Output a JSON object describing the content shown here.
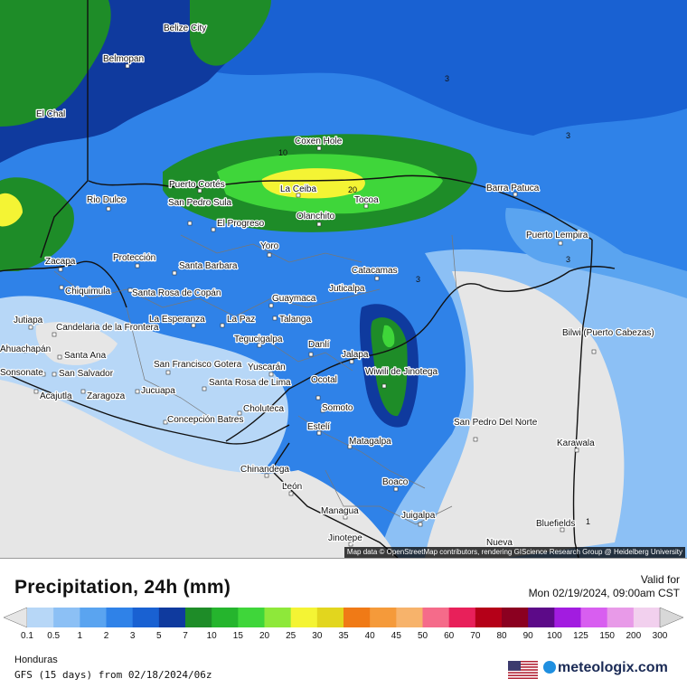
{
  "title": "Precipitation, 24h (mm)",
  "valid_label": "Valid for",
  "valid_time": "Mon 02/19/2024, 09:00am CST",
  "region": "Honduras",
  "model_run": "GFS (15 days) from  02/18/2024/06z",
  "brand": "meteologix.com",
  "attribution": "Map data © OpenStreetMap contributors, rendering GIScience Research Group @ Heidelberg University",
  "legend": {
    "ticks": [
      "0.1",
      "0.5",
      "1",
      "2",
      "3",
      "5",
      "7",
      "10",
      "15",
      "20",
      "25",
      "30",
      "35",
      "40",
      "45",
      "50",
      "60",
      "70",
      "80",
      "90",
      "100",
      "125",
      "150",
      "200",
      "300"
    ],
    "colors": [
      "#e6e6e6",
      "#b7d7f7",
      "#8cc0f5",
      "#5aa4f0",
      "#2f82e8",
      "#1961d2",
      "#0f3a9e",
      "#1e8c28",
      "#25b52d",
      "#3fd63a",
      "#8ee83a",
      "#f4f434",
      "#e2d61e",
      "#f07a16",
      "#f59a3a",
      "#f7b36b",
      "#f56b8a",
      "#e8205a",
      "#b50018",
      "#8b0020",
      "#5c0a88",
      "#a21ce0",
      "#d85ef0",
      "#e89ae8",
      "#f2d0ee",
      "#d8d8d8"
    ]
  },
  "cities": [
    {
      "name": "Belize City"
    },
    {
      "name": "Belmopan"
    },
    {
      "name": "El Chal"
    },
    {
      "name": "Coxen Hole"
    },
    {
      "name": "Puerto Cortés"
    },
    {
      "name": "La Ceiba"
    },
    {
      "name": "Tocoa"
    },
    {
      "name": "Barra Patuca"
    },
    {
      "name": "Rio Dulce"
    },
    {
      "name": "San Pedro Sula"
    },
    {
      "name": "El Progreso"
    },
    {
      "name": "Olanchito"
    },
    {
      "name": "Puerto Lempira"
    },
    {
      "name": "Yoro"
    },
    {
      "name": "Zacapa"
    },
    {
      "name": "Protección"
    },
    {
      "name": "Santa Barbara"
    },
    {
      "name": "Catacamas"
    },
    {
      "name": "Chiquimula"
    },
    {
      "name": "Santa Rosa de Copán"
    },
    {
      "name": "Juticalpa"
    },
    {
      "name": "Guaymaca"
    },
    {
      "name": "Jutiapa"
    },
    {
      "name": "Candelaria de la Frontera"
    },
    {
      "name": "La Esperanza"
    },
    {
      "name": "La Paz"
    },
    {
      "name": "Talanga"
    },
    {
      "name": "Bilwi (Puerto Cabezas)"
    },
    {
      "name": "Ahuachapán"
    },
    {
      "name": "Santa Ana"
    },
    {
      "name": "Tegucigalpa"
    },
    {
      "name": "Danlí"
    },
    {
      "name": "Jalapa"
    },
    {
      "name": "Sonsonate"
    },
    {
      "name": "San Salvador"
    },
    {
      "name": "San Francisco Gotera"
    },
    {
      "name": "Yuscarán"
    },
    {
      "name": "Wiwili de Jinotega"
    },
    {
      "name": "Acajutla"
    },
    {
      "name": "Zaragoza"
    },
    {
      "name": "Jucuapa"
    },
    {
      "name": "Santa Rosa de Lima"
    },
    {
      "name": "Ocotal"
    },
    {
      "name": "Choluteca"
    },
    {
      "name": "Somoto"
    },
    {
      "name": "Concepción Batres"
    },
    {
      "name": "Estelí"
    },
    {
      "name": "San Pedro Del Norte"
    },
    {
      "name": "Matagalpa"
    },
    {
      "name": "Karawala"
    },
    {
      "name": "Chinandega"
    },
    {
      "name": "Boaco"
    },
    {
      "name": "León"
    },
    {
      "name": "Managua"
    },
    {
      "name": "Juigalpa"
    },
    {
      "name": "Bluefields"
    },
    {
      "name": "Jinotepe"
    },
    {
      "name": "Nueva"
    }
  ],
  "contour_values": [
    "3",
    "3",
    "3",
    "3",
    "10",
    "20",
    "1"
  ]
}
